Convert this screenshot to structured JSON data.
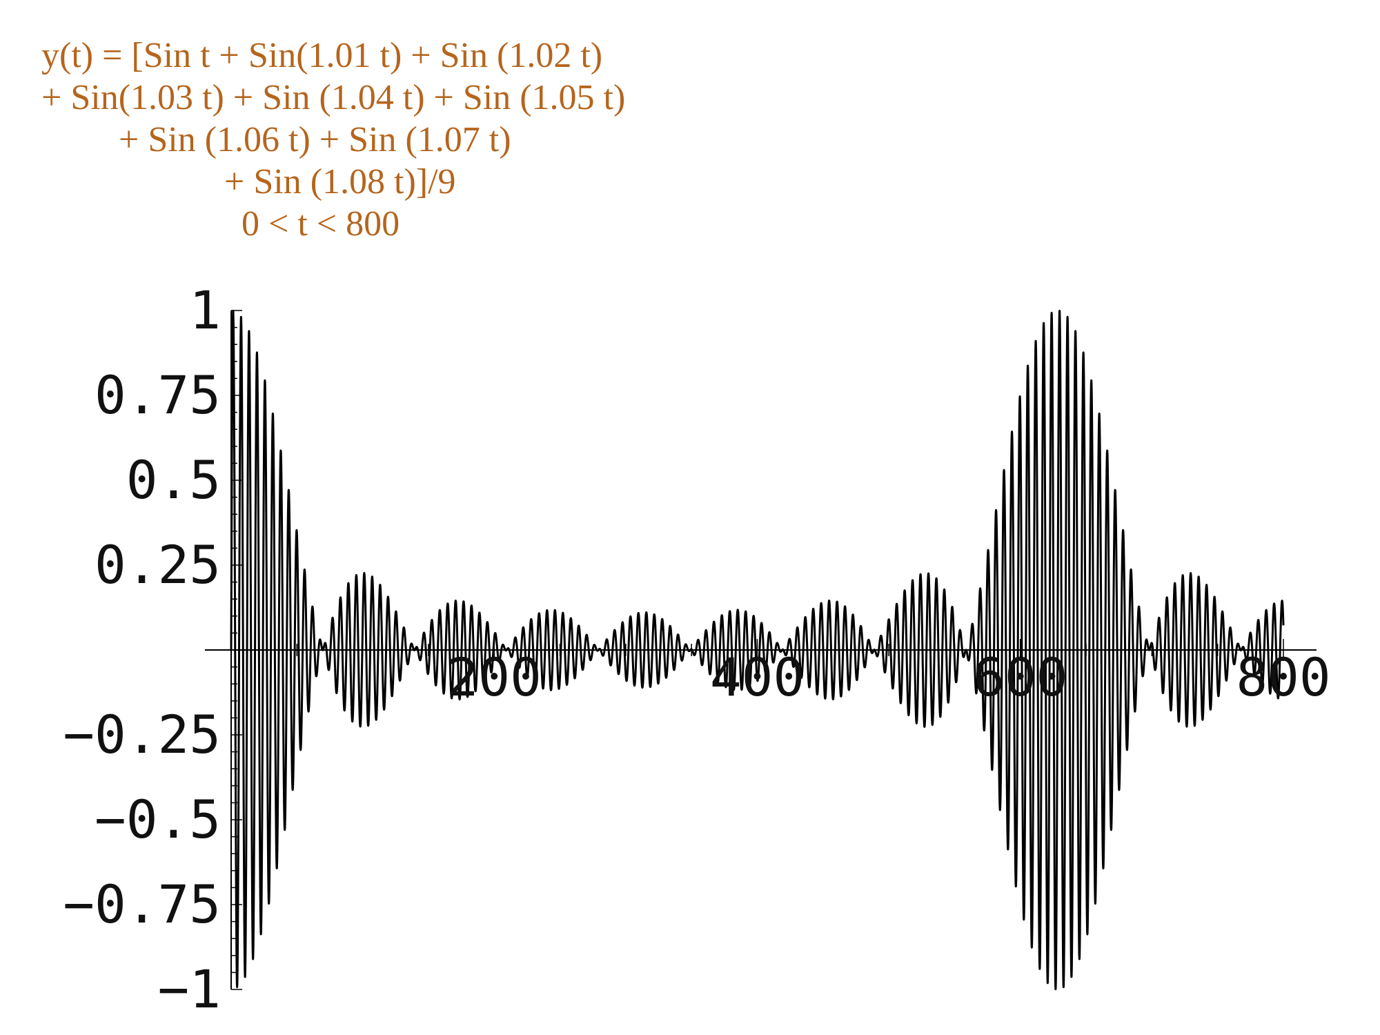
{
  "formula": {
    "color": "#b5651d",
    "lines": [
      "y(t) = [Sin t + Sin(1.01 t) + Sin (1.02 t)",
      "+ Sin(1.03 t) + Sin (1.04 t) + Sin (1.05 t)",
      "+ Sin (1.06 t) + Sin (1.07 t)",
      "+ Sin (1.08 t)]/9",
      "0 < t < 800"
    ]
  },
  "chart_data": {
    "type": "line",
    "title": "",
    "xlabel": "",
    "ylabel": "",
    "function": "y(t) = [sin t + sin(1.01 t) + sin(1.02 t) + sin(1.03 t) + sin(1.04 t) + sin(1.05 t) + sin(1.06 t) + sin(1.07 t) + sin(1.08 t)]/9",
    "frequencies": [
      1.0,
      1.01,
      1.02,
      1.03,
      1.04,
      1.05,
      1.06,
      1.07,
      1.08
    ],
    "divisor": 9,
    "t_range": [
      0,
      800
    ],
    "xlim": [
      0,
      800
    ],
    "ylim": [
      -1,
      1
    ],
    "x_ticks": [
      200,
      400,
      600,
      800
    ],
    "x_tick_labels": [
      "200",
      "400",
      "600",
      "800"
    ],
    "y_ticks": [
      1,
      0.75,
      0.5,
      0.25,
      -0.25,
      -0.5,
      -0.75,
      -1
    ],
    "y_tick_labels": [
      "1",
      "0.75",
      "0.5",
      "0.25",
      "−0.25",
      "−0.5",
      "−0.75",
      "−1"
    ],
    "grid": false,
    "line_color": "#000000",
    "axis_color": "#000000"
  }
}
